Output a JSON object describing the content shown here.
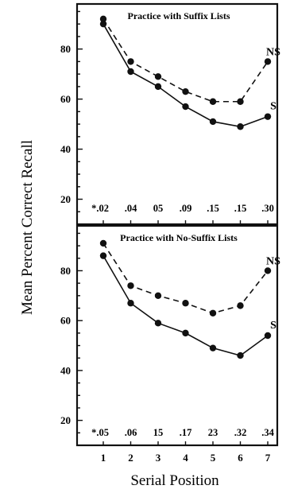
{
  "chart_data": [
    {
      "type": "line",
      "title": "Practice with Suffix Lists",
      "xlabel": "Serial Position",
      "ylabel": "Mean Percent Correct Recall",
      "x": [
        1,
        2,
        3,
        4,
        5,
        6,
        7
      ],
      "ylim": [
        10,
        98
      ],
      "yticks": [
        20,
        40,
        60,
        80
      ],
      "series": [
        {
          "name": "NS",
          "style": "dashed",
          "values": [
            92,
            75,
            69,
            63,
            59,
            59,
            75
          ]
        },
        {
          "name": "S",
          "style": "solid",
          "values": [
            90,
            71,
            65,
            57,
            51,
            49,
            53
          ]
        }
      ],
      "p_labels": [
        "*.02",
        ".04",
        "05",
        ".09",
        ".15",
        ".15",
        ".30"
      ]
    },
    {
      "type": "line",
      "title": "Practice with No-Suffix Lists",
      "xlabel": "Serial Position",
      "ylabel": "Mean Percent Correct Recall",
      "x": [
        1,
        2,
        3,
        4,
        5,
        6,
        7
      ],
      "xticks": [
        "1",
        "2",
        "3",
        "4",
        "5",
        "6",
        "7"
      ],
      "ylim": [
        10,
        98
      ],
      "yticks": [
        20,
        40,
        60,
        80
      ],
      "series": [
        {
          "name": "NS",
          "style": "dashed",
          "values": [
            91,
            74,
            70,
            67,
            63,
            66,
            80
          ]
        },
        {
          "name": "S",
          "style": "solid",
          "values": [
            86,
            67,
            59,
            55,
            49,
            46,
            54
          ]
        }
      ],
      "p_labels": [
        "*.05",
        ".06",
        "15",
        ".17",
        "23",
        ".32",
        ".34"
      ]
    }
  ],
  "colors": {
    "ink": "#111111",
    "background": "#ffffff"
  }
}
